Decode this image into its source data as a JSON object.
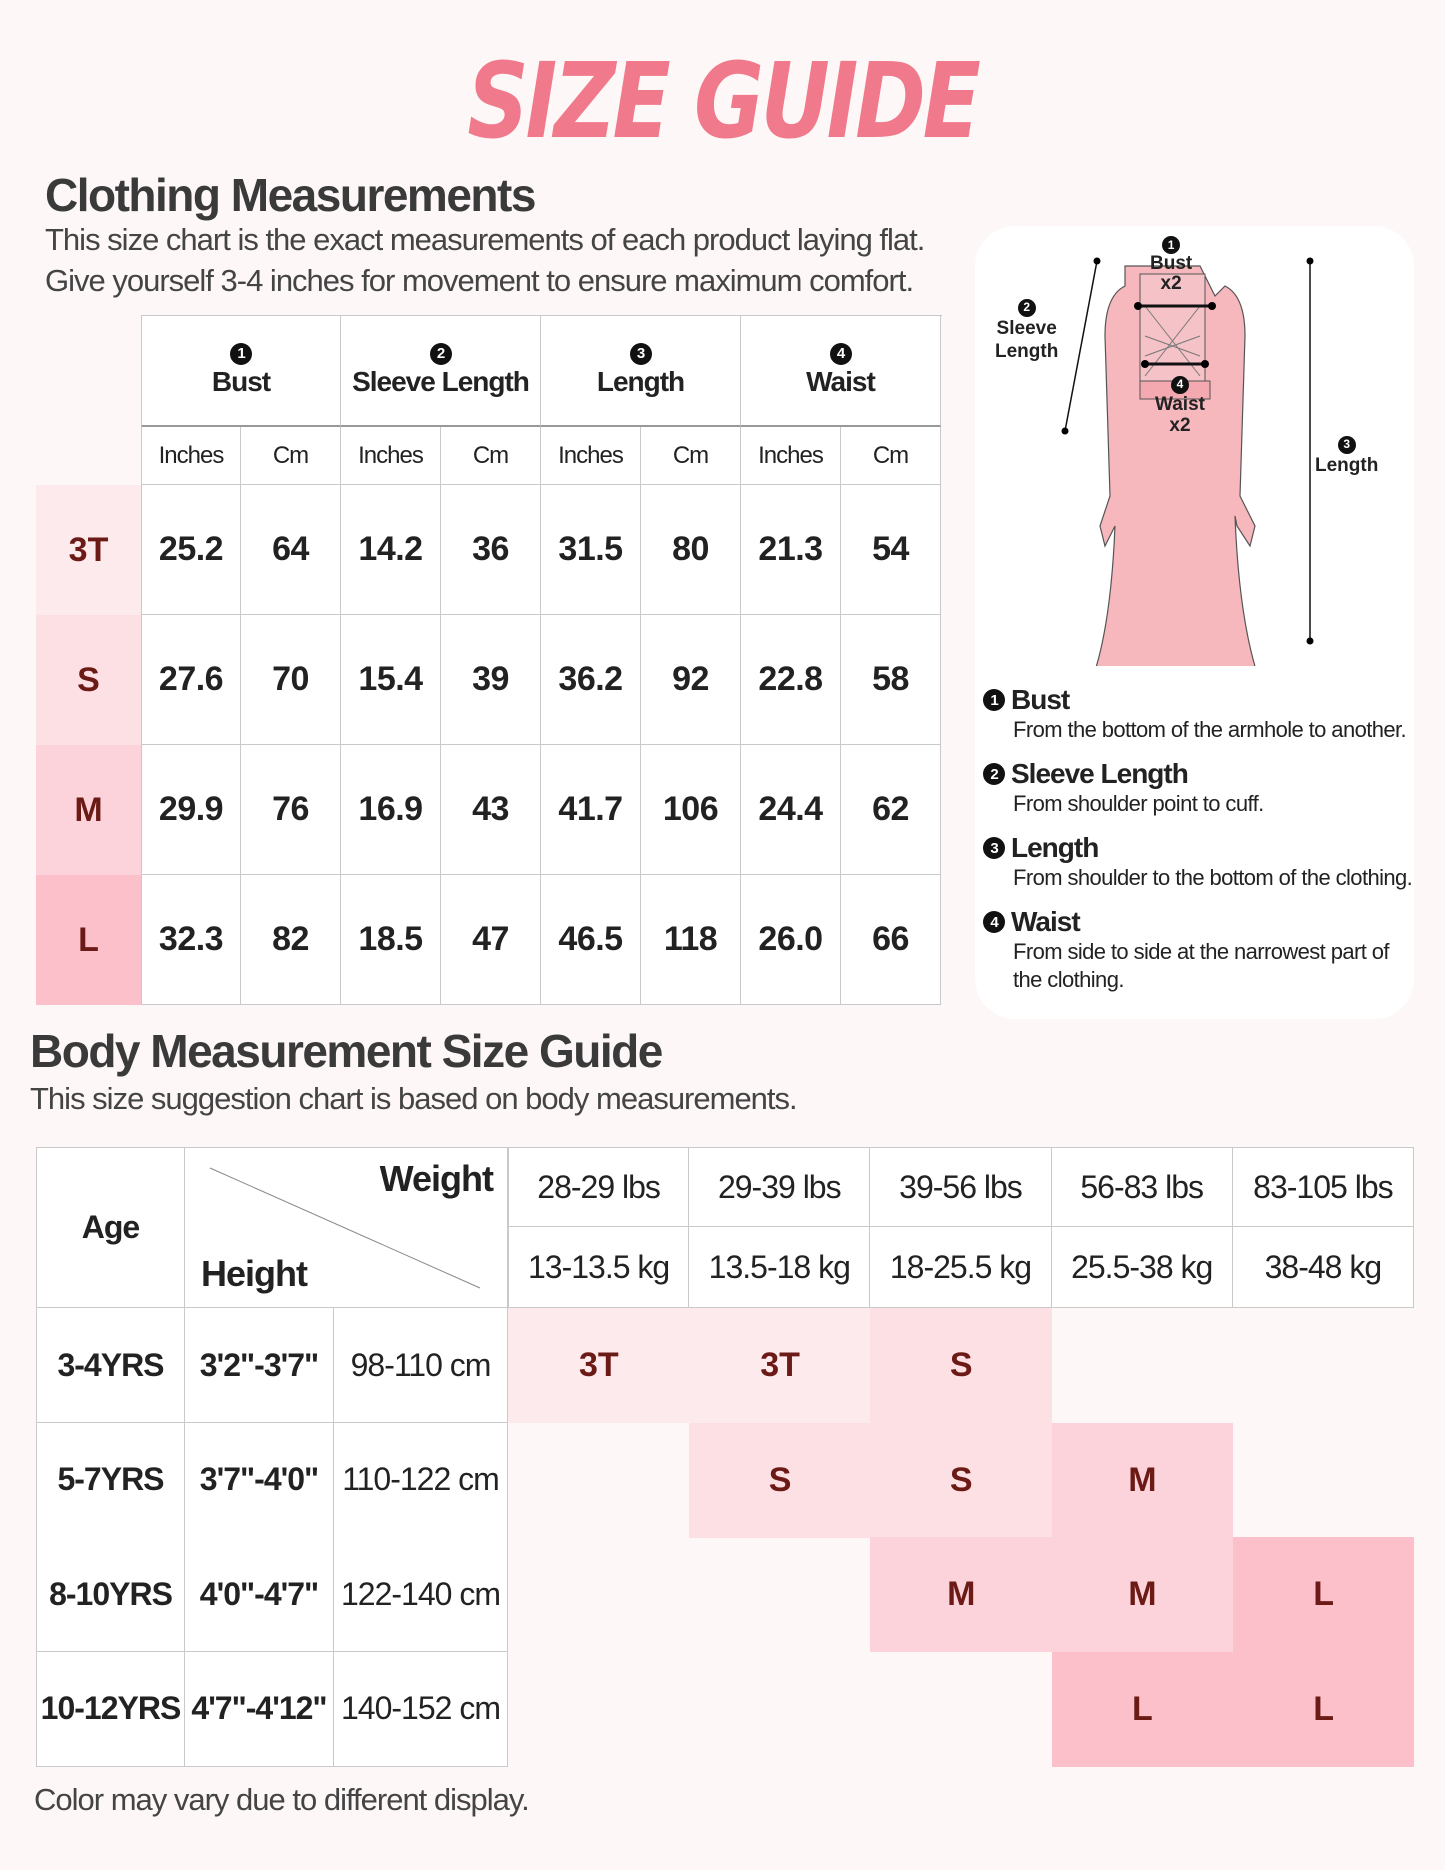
{
  "title": "SIZE GUIDE",
  "clothing": {
    "heading": "Clothing Measurements",
    "line1": "This size chart is the exact measurements of each product laying flat.",
    "line2": "Give yourself 3-4 inches for movement to ensure maximum comfort.",
    "columns": [
      {
        "num": "1",
        "label": "Bust"
      },
      {
        "num": "2",
        "label": "Sleeve Length"
      },
      {
        "num": "3",
        "label": "Length"
      },
      {
        "num": "4",
        "label": "Waist"
      }
    ],
    "units": [
      "Inches",
      "Cm"
    ],
    "rows": [
      {
        "size": "3T",
        "values": [
          "25.2",
          "64",
          "14.2",
          "36",
          "31.5",
          "80",
          "21.3",
          "54"
        ]
      },
      {
        "size": "S",
        "values": [
          "27.6",
          "70",
          "15.4",
          "39",
          "36.2",
          "92",
          "22.8",
          "58"
        ]
      },
      {
        "size": "M",
        "values": [
          "29.9",
          "76",
          "16.9",
          "43",
          "41.7",
          "106",
          "24.4",
          "62"
        ]
      },
      {
        "size": "L",
        "values": [
          "32.3",
          "82",
          "18.5",
          "47",
          "46.5",
          "118",
          "26.0",
          "66"
        ]
      }
    ],
    "row_colors": [
      "#fdeaec",
      "#fde0e4",
      "#fcd3da",
      "#fbc0ca"
    ]
  },
  "diagram": {
    "labels": {
      "bust": "Bust",
      "bust_x2": "x2",
      "sleeve1": "Sleeve",
      "sleeve2": "Length",
      "waist": "Waist",
      "waist_x2": "x2",
      "length": "Length"
    },
    "descriptions": [
      {
        "num": "1",
        "title": "Bust",
        "text": "From the bottom of the armhole to another."
      },
      {
        "num": "2",
        "title": "Sleeve Length",
        "text": "From shoulder point to cuff."
      },
      {
        "num": "3",
        "title": "Length",
        "text": "From shoulder to the bottom of the clothing."
      },
      {
        "num": "4",
        "title": "Waist",
        "text": "From side to side at the narrowest part of the clothing."
      }
    ]
  },
  "body": {
    "heading": "Body Measurement Size Guide",
    "subtitle": "This size suggestion chart is based on body measurements.",
    "age_label": "Age",
    "weight_label": "Weight",
    "height_label": "Height",
    "weights_lbs": [
      "28-29 lbs",
      "29-39 lbs",
      "39-56 lbs",
      "56-83 lbs",
      "83-105 lbs"
    ],
    "weights_kg": [
      "13-13.5 kg",
      "13.5-18 kg",
      "18-25.5 kg",
      "25.5-38 kg",
      "38-48 kg"
    ],
    "rows": [
      {
        "age": "3-4YRS",
        "ft": "3'2\"-3'7\"",
        "cm": "98-110 cm",
        "sizes": [
          "3T",
          "3T",
          "S",
          "",
          ""
        ]
      },
      {
        "age": "5-7YRS",
        "ft": "3'7\"-4'0\"",
        "cm": "110-122 cm",
        "sizes": [
          "",
          "S",
          "S",
          "M",
          ""
        ]
      },
      {
        "age": "8-10YRS",
        "ft": "4'0\"-4'7\"",
        "cm": "122-140 cm",
        "sizes": [
          "",
          "",
          "M",
          "M",
          "L"
        ]
      },
      {
        "age": "10-12YRS",
        "ft": "4'7\"-4'12\"",
        "cm": "140-152 cm",
        "sizes": [
          "",
          "",
          "",
          "L",
          "L"
        ]
      }
    ]
  },
  "footer": "Color may vary due to different display.",
  "colors": {
    "title": "#f07a8c",
    "size_text": "#6b1a16",
    "3T": "#fdeaec",
    "S": "#fde0e4",
    "M": "#fcd3da",
    "L": "#fbc0ca"
  }
}
